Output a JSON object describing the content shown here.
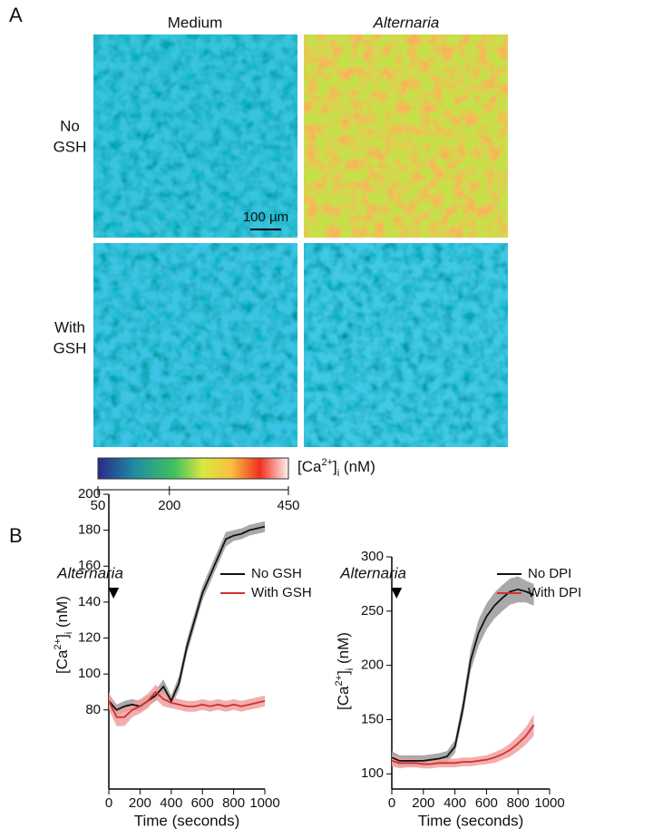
{
  "panel_a": {
    "label": "A",
    "columns": [
      "Medium",
      "Alternaria"
    ],
    "rows": [
      [
        "No",
        "GSH"
      ],
      [
        "With",
        "GSH"
      ]
    ],
    "scale_bar": "100 µm",
    "colorbar": {
      "label_parts": [
        "[Ca",
        "2+",
        "]",
        "i",
        " (nM)"
      ],
      "range": [
        50,
        450
      ],
      "ticks": [
        50,
        200,
        450
      ]
    }
  },
  "panel_b_label": "B",
  "chart_data": [
    {
      "type": "line",
      "annotation": {
        "text": "Alternaria",
        "x": 30
      },
      "x_label": "Time (seconds)",
      "y_label_parts": [
        "[Ca",
        "2+",
        "]",
        "i",
        " (nM)"
      ],
      "x": [
        0,
        50,
        100,
        150,
        200,
        250,
        300,
        350,
        400,
        450,
        500,
        550,
        600,
        650,
        700,
        750,
        800,
        850,
        900,
        950,
        1000
      ],
      "xlim": [
        0,
        1000
      ],
      "xticks": [
        0,
        200,
        400,
        600,
        800,
        1000
      ],
      "ylim": [
        36,
        200
      ],
      "yticks": [
        80,
        100,
        120,
        140,
        160,
        180,
        200
      ],
      "legend": "top-right",
      "series": [
        {
          "name": "No GSH",
          "color": "#111111",
          "band_color": "#9a9a9a",
          "values": [
            85,
            80,
            82,
            83,
            82,
            85,
            88,
            93,
            85,
            95,
            115,
            130,
            145,
            155,
            165,
            175,
            177,
            178,
            180,
            181,
            182
          ],
          "errors": [
            4,
            3,
            3,
            3,
            3,
            3,
            3,
            4,
            3,
            4,
            4,
            4,
            4,
            4,
            4,
            4,
            3,
            3,
            3,
            3,
            3
          ]
        },
        {
          "name": "With GSH",
          "color": "#d03030",
          "band_color": "#f0a0a0",
          "values": [
            85,
            76,
            76,
            80,
            82,
            85,
            90,
            86,
            84,
            83,
            82,
            82,
            83,
            82,
            83,
            82,
            83,
            82,
            83,
            84,
            85
          ],
          "errors": [
            5,
            5,
            5,
            4,
            4,
            4,
            4,
            4,
            3,
            3,
            3,
            3,
            3,
            3,
            3,
            3,
            3,
            3,
            3,
            3,
            3
          ]
        }
      ]
    },
    {
      "type": "line",
      "annotation": {
        "text": "Alternaria",
        "x": 30
      },
      "x_label": "Time (seconds)",
      "y_label_parts": [
        "[Ca",
        "2+",
        "]",
        "i",
        " (nM)"
      ],
      "x": [
        0,
        50,
        100,
        150,
        200,
        250,
        300,
        350,
        400,
        450,
        500,
        550,
        600,
        650,
        700,
        750,
        800,
        850,
        900
      ],
      "xlim": [
        0,
        1000
      ],
      "xticks": [
        0,
        200,
        400,
        600,
        800,
        1000
      ],
      "ylim": [
        86,
        300
      ],
      "yticks": [
        100,
        150,
        200,
        250,
        300
      ],
      "legend": "top-right",
      "series": [
        {
          "name": "No DPI",
          "color": "#111111",
          "band_color": "#9a9a9a",
          "values": [
            115,
            112,
            112,
            112,
            112,
            113,
            114,
            116,
            125,
            160,
            205,
            230,
            245,
            255,
            262,
            268,
            270,
            268,
            265
          ],
          "errors": [
            6,
            5,
            5,
            5,
            5,
            5,
            5,
            5,
            6,
            8,
            10,
            12,
            12,
            12,
            12,
            12,
            12,
            10,
            10
          ]
        },
        {
          "name": "With DPI",
          "color": "#d03030",
          "band_color": "#f0a0a0",
          "values": [
            112,
            110,
            110,
            110,
            109,
            109,
            110,
            110,
            110,
            111,
            111,
            112,
            113,
            115,
            118,
            122,
            128,
            135,
            145
          ],
          "errors": [
            5,
            5,
            4,
            4,
            4,
            4,
            4,
            4,
            4,
            4,
            4,
            4,
            4,
            5,
            5,
            6,
            7,
            8,
            10
          ]
        }
      ]
    }
  ]
}
